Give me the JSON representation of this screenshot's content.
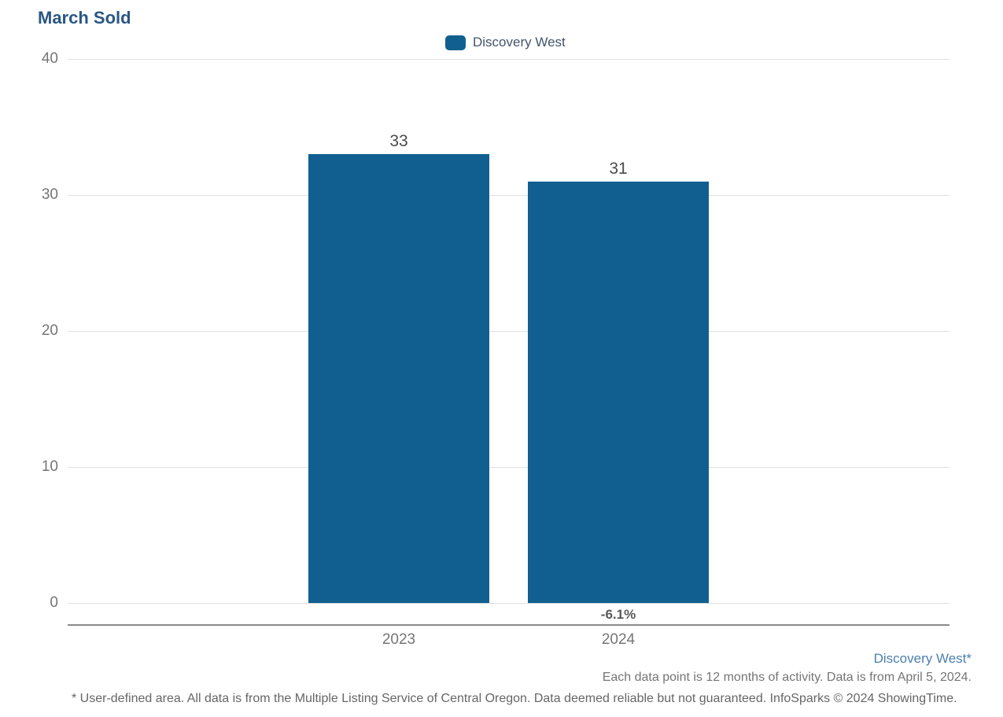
{
  "title": "March Sold",
  "legend": {
    "label": "Discovery West"
  },
  "chart_data": {
    "type": "bar",
    "title": "March Sold",
    "categories": [
      "2023",
      "2024"
    ],
    "series": [
      {
        "name": "Discovery West",
        "values": [
          33,
          31
        ]
      }
    ],
    "value_labels": [
      "33",
      "31"
    ],
    "change_labels": [
      "",
      "-6.1%"
    ],
    "xlabel": "",
    "ylabel": "",
    "ylim": [
      0,
      40
    ],
    "yticks": [
      40,
      30,
      20,
      10,
      0
    ],
    "grid": true,
    "legend_position": "top-center"
  },
  "footer": {
    "series_link": "Discovery West*",
    "data_note": "Each data point is 12 months of activity. Data is from April 5, 2024.",
    "disclaimer": "* User-defined area. All data is from the Multiple Listing Service of Central Oregon. Data deemed reliable but not guaranteed. InfoSparks © 2024 ShowingTime."
  },
  "colors": {
    "bar": "#115F90",
    "title": "#2A5784",
    "legend_text": "#44546A",
    "axis_text": "#757575",
    "value_text": "#4C4C4C",
    "change_text": "#58585A",
    "gridline": "#E0E0E0",
    "axis_line": "#8A8A8A",
    "footer_link": "#4D7FAE",
    "footer_text": "#757575",
    "disclaimer_text": "#666666"
  }
}
